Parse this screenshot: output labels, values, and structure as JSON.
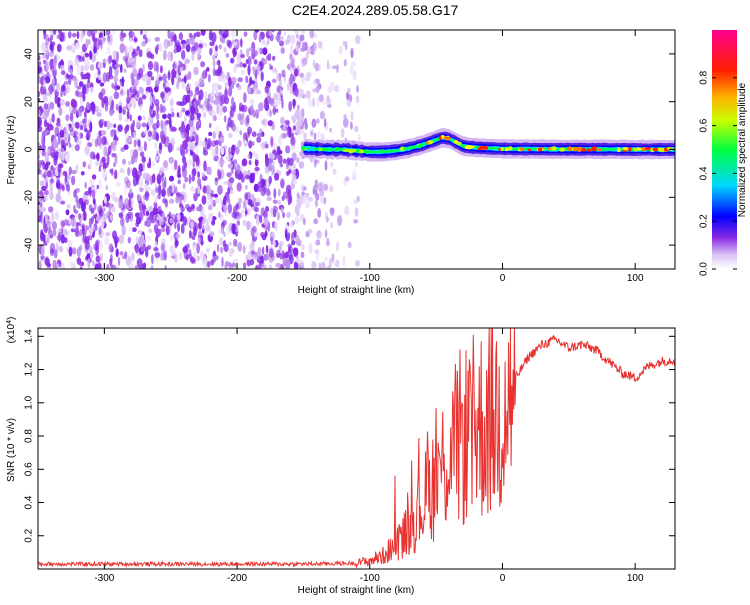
{
  "title": "C2E4.2024.289.05.58.G17",
  "chart_data": [
    {
      "type": "heatmap",
      "xlabel": "Height of straight line (km)",
      "ylabel": "Frequency (Hz)",
      "xlim": [
        -350,
        130
      ],
      "ylim": [
        -50,
        50
      ],
      "xticks": [
        -300,
        -200,
        -100,
        0,
        100
      ],
      "yticks": [
        -40,
        -20,
        0,
        20,
        40
      ],
      "colorbar": {
        "label": "Normalized spectral amplitude",
        "range": [
          0,
          1
        ],
        "ticks": [
          "0.0",
          "0.2",
          "0.4",
          "0.6",
          "0.8"
        ],
        "colormap": [
          "#ffffff",
          "#8a2be2",
          "#0000ff",
          "#00e5ff",
          "#00ff00",
          "#ffff00",
          "#ff8000",
          "#ff0000",
          "#ff0090"
        ]
      },
      "noise_region_x": [
        -350,
        -108
      ],
      "signal_track": {
        "x": [
          -150,
          -140,
          -130,
          -120,
          -110,
          -100,
          -90,
          -80,
          -70,
          -60,
          -50,
          -45,
          -40,
          -35,
          -30,
          -25,
          -20,
          -10,
          0,
          10,
          20,
          40,
          60,
          80,
          100,
          110,
          120,
          130
        ],
        "center": [
          0.5,
          0.2,
          0.0,
          0.0,
          -0.5,
          -1.0,
          -1.0,
          -0.5,
          0.5,
          2.0,
          4.0,
          5.0,
          4.5,
          3.0,
          1.5,
          1.0,
          0.8,
          0.5,
          0.3,
          0.2,
          0.2,
          0.1,
          0.1,
          0.1,
          0.0,
          0.0,
          0.0,
          0.0
        ]
      }
    },
    {
      "type": "line",
      "xlabel": "Height of straight line (km)",
      "ylabel": "SNR (10 * v/v)",
      "y_multiplier": "(x10",
      "y_exponent": "4",
      "y_multiplier_close": ")",
      "xlim": [
        -350,
        130
      ],
      "ylim": [
        0,
        1.45
      ],
      "xticks": [
        -300,
        -200,
        -100,
        0,
        100
      ],
      "yticks": [
        "0.2",
        "0.4",
        "0.6",
        "0.8",
        "1.0",
        "1.2",
        "1.4"
      ],
      "line_color": "#e8322f",
      "series": [
        {
          "x": [
            -350,
            -300,
            -250,
            -200,
            -150,
            -110,
            -100,
            -90,
            -80,
            -70,
            -60,
            -50,
            -40,
            -30,
            -20,
            -10,
            0,
            5,
            10,
            20,
            30,
            40,
            50,
            60,
            70,
            80,
            90,
            100,
            110,
            120,
            130
          ],
          "values": [
            0.03,
            0.03,
            0.03,
            0.03,
            0.03,
            0.035,
            0.05,
            0.08,
            0.15,
            0.25,
            0.4,
            0.55,
            0.7,
            0.8,
            0.85,
            0.9,
            0.95,
            1.05,
            1.15,
            1.28,
            1.35,
            1.38,
            1.33,
            1.35,
            1.32,
            1.25,
            1.18,
            1.15,
            1.22,
            1.25,
            1.26
          ]
        }
      ]
    }
  ]
}
